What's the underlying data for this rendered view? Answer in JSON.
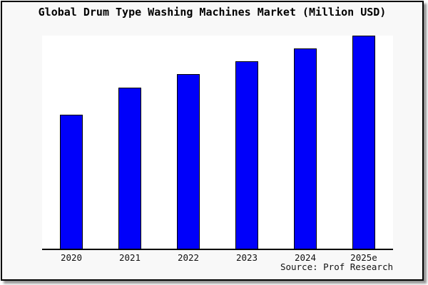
{
  "window": {
    "background": "#f8f8f8",
    "border_color": "#000000",
    "shadow_color": "#3c3c3c"
  },
  "colors": {
    "bar_fill": "#0000fa",
    "bar_border": "#000000",
    "plot_background": "#ffffff",
    "axis": "#000000"
  },
  "source_credit": "Source: Prof Research",
  "chart_data": {
    "type": "bar",
    "title": "Global Drum Type Washing Machines Market (Million USD)",
    "categories": [
      "2020",
      "2021",
      "2022",
      "2023",
      "2024",
      "2025e"
    ],
    "values": [
      63,
      75.5,
      82,
      88,
      94,
      100
    ],
    "values_unit": "percent of 2025e bar height (no numeric axis shown)",
    "value_labels_shown": false,
    "xlabel": "",
    "ylabel": "",
    "ylim": [
      0,
      100
    ],
    "grid": false,
    "legend": false,
    "y_axis_shown": false,
    "x_axis_shown": true,
    "annotation": "Source: Prof Research"
  }
}
